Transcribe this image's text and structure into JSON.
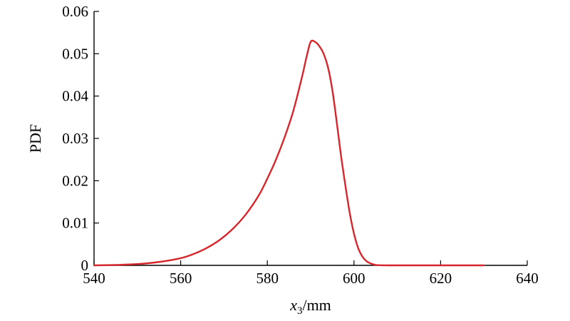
{
  "chart_data": {
    "type": "line",
    "title": "",
    "xlabel": "x3/mm",
    "xlabel_parts": {
      "var": "x",
      "sub": "3",
      "unit": "/mm"
    },
    "ylabel": "PDF",
    "xlim": [
      540,
      640
    ],
    "ylim": [
      0,
      0.06
    ],
    "xticks": [
      540,
      560,
      580,
      600,
      620,
      640
    ],
    "xtick_labels": [
      "540",
      "560",
      "580",
      "600",
      "620",
      "640"
    ],
    "yticks": [
      0,
      0.01,
      0.02,
      0.03,
      0.04,
      0.05,
      0.06
    ],
    "ytick_labels": [
      "0",
      "0.01",
      "0.02",
      "0.03",
      "0.04",
      "0.05",
      "0.06"
    ],
    "grid": false,
    "legend": "none",
    "series": [
      {
        "color": "#d7262b",
        "x": [
          540,
          545,
          550,
          555,
          560,
          563,
          566,
          569,
          572,
          575,
          578,
          580,
          582,
          584,
          586,
          588,
          589,
          590,
          591,
          592,
          593,
          594,
          595,
          596,
          597,
          598,
          599,
          600,
          601,
          602,
          603,
          604,
          605,
          606,
          608,
          610,
          615,
          620,
          625,
          630
        ],
        "y": [
          0.0,
          0.0001,
          0.0003,
          0.0008,
          0.0017,
          0.0027,
          0.0041,
          0.006,
          0.0086,
          0.012,
          0.0165,
          0.0205,
          0.025,
          0.0303,
          0.0365,
          0.0445,
          0.049,
          0.0528,
          0.0528,
          0.0518,
          0.05,
          0.0468,
          0.0415,
          0.034,
          0.026,
          0.019,
          0.0125,
          0.0075,
          0.004,
          0.002,
          0.0009,
          0.0004,
          0.0001,
          3e-05,
          0.0,
          0.0,
          0.0,
          0.0,
          0.0,
          0.0
        ]
      }
    ]
  }
}
